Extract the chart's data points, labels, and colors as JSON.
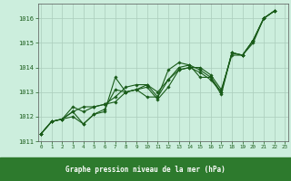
{
  "title": "Graphe pression niveau de la mer (hPa)",
  "bg_color": "#cceedd",
  "label_bar_color": "#2d7a2d",
  "grid_color": "#aaccbb",
  "line_color": "#1a5c1a",
  "marker_color": "#1a5c1a",
  "xlim": [
    -0.3,
    23.3
  ],
  "ylim": [
    1011.0,
    1016.6
  ],
  "xticks": [
    0,
    1,
    2,
    3,
    4,
    5,
    6,
    7,
    8,
    9,
    10,
    11,
    12,
    13,
    14,
    15,
    16,
    17,
    18,
    19,
    20,
    21,
    22,
    23
  ],
  "yticks": [
    1011,
    1012,
    1013,
    1014,
    1015,
    1016
  ],
  "series": [
    [
      1011.3,
      1011.8,
      1011.9,
      1012.0,
      1011.7,
      1012.1,
      1012.2,
      1013.6,
      1013.0,
      1013.1,
      1012.8,
      1012.8,
      1013.9,
      1014.2,
      1014.1,
      1013.6,
      1013.6,
      1012.9,
      1014.6,
      1014.5,
      1015.1,
      1016.0,
      1016.3
    ],
    [
      1011.3,
      1011.8,
      1011.9,
      1012.2,
      1011.7,
      1012.1,
      1012.3,
      1013.1,
      1013.0,
      1013.1,
      1013.2,
      1012.7,
      1013.2,
      1013.9,
      1014.0,
      1013.8,
      1013.5,
      1013.0,
      1014.6,
      1014.5,
      1015.0,
      1016.0,
      1016.3
    ],
    [
      1011.3,
      1011.8,
      1011.9,
      1012.2,
      1012.4,
      1012.4,
      1012.5,
      1012.6,
      1013.0,
      1013.1,
      1013.3,
      1013.0,
      1013.5,
      1013.9,
      1014.0,
      1014.0,
      1013.7,
      1013.1,
      1014.5,
      1014.5,
      1015.1,
      1016.0,
      1016.3
    ],
    [
      1011.3,
      1011.8,
      1011.9,
      1012.4,
      1012.2,
      1012.4,
      1012.5,
      1012.8,
      1013.2,
      1013.3,
      1013.3,
      1012.8,
      1013.5,
      1014.0,
      1014.1,
      1013.9,
      1013.6,
      1013.0,
      1014.6,
      1014.5,
      1015.1,
      1016.0,
      1016.3
    ]
  ]
}
